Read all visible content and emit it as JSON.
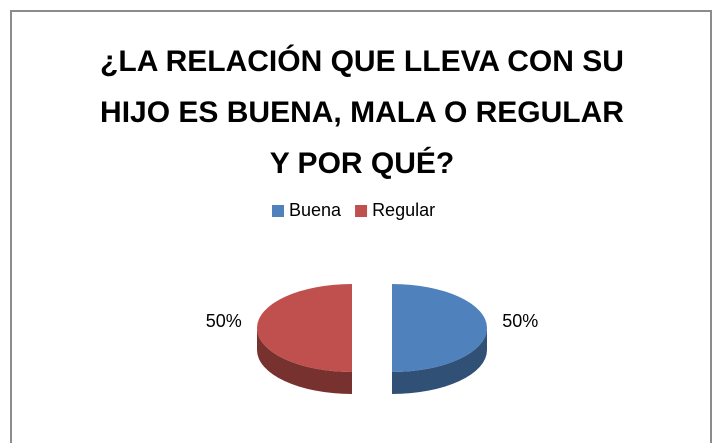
{
  "chart_data": {
    "type": "pie",
    "title": "¿LA RELACIÓN QUE LLEVA CON SU HIJO ES BUENA, MALA O REGULAR Y POR QUÉ?",
    "categories": [
      "Buena",
      "Regular"
    ],
    "values": [
      50,
      50
    ],
    "value_labels": [
      "50%",
      "50%"
    ],
    "colors": [
      "#4f81bd",
      "#c0504d"
    ],
    "legend": "top"
  }
}
